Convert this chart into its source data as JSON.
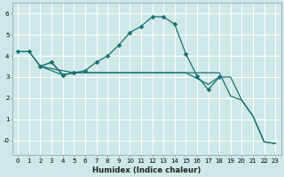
{
  "xlabel": "Humidex (Indice chaleur)",
  "bg_color": "#cee8e8",
  "grid_color": "#ffffff",
  "line_color": "#1a7070",
  "xlim": [
    -0.5,
    23.5
  ],
  "ylim": [
    -0.7,
    6.5
  ],
  "xticks": [
    0,
    1,
    2,
    3,
    4,
    5,
    6,
    7,
    8,
    9,
    10,
    11,
    12,
    13,
    14,
    15,
    16,
    17,
    18,
    19,
    20,
    21,
    22,
    23
  ],
  "yticks": [
    0,
    1,
    2,
    3,
    4,
    5,
    6
  ],
  "ytick_labels": [
    "-0",
    "1",
    "2",
    "3",
    "4",
    "5",
    "6"
  ],
  "line1_x": [
    0,
    1,
    2,
    3,
    4,
    5
  ],
  "line1_y": [
    4.2,
    4.2,
    3.5,
    3.7,
    3.1,
    3.2
  ],
  "line2_x": [
    2,
    3,
    4,
    5,
    6,
    7,
    8,
    9,
    10,
    11,
    12,
    13,
    14,
    15,
    16,
    17,
    18
  ],
  "line2_y": [
    3.5,
    3.7,
    3.1,
    3.2,
    3.3,
    3.7,
    4.0,
    4.5,
    5.1,
    5.4,
    5.85,
    5.85,
    5.5,
    4.1,
    3.05,
    2.4,
    3.0
  ],
  "line3_x": [
    0,
    1,
    2,
    3,
    4,
    5,
    6,
    7,
    8,
    9,
    10,
    11,
    12,
    13,
    14,
    15,
    16,
    17,
    18,
    19,
    20,
    21,
    22,
    23
  ],
  "line3_y": [
    4.2,
    4.2,
    3.5,
    3.3,
    3.1,
    3.2,
    3.2,
    3.2,
    3.2,
    3.2,
    3.2,
    3.2,
    3.2,
    3.2,
    3.2,
    3.2,
    3.2,
    3.2,
    3.2,
    2.1,
    1.9,
    1.15,
    -0.07,
    -0.15
  ],
  "line4_x": [
    2,
    5,
    6,
    10,
    15,
    17,
    18,
    19,
    20,
    21,
    22,
    23
  ],
  "line4_y": [
    3.5,
    3.2,
    3.2,
    3.2,
    3.2,
    2.65,
    3.0,
    3.0,
    1.9,
    1.15,
    -0.07,
    -0.15
  ]
}
